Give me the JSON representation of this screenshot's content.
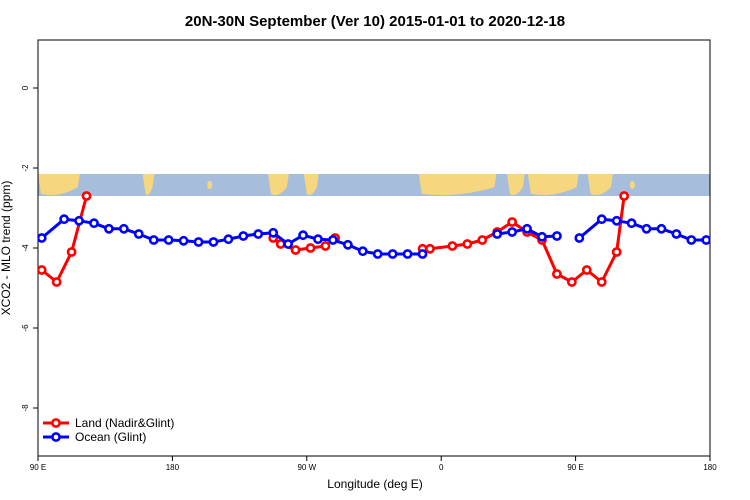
{
  "chart_data": {
    "type": "line",
    "title": "20N-30N September (Ver 10)   2015-01-01 to 2020-12-18",
    "xlabel": "Longitude (deg E)",
    "ylabel": "XCO2 - MLO trend (ppm)",
    "xlim": [
      90,
      540
    ],
    "ylim": [
      -9.2,
      1.2
    ],
    "x_ticks": [
      {
        "value": 90,
        "label": "90 E"
      },
      {
        "value": 180,
        "label": "180"
      },
      {
        "value": 270,
        "label": "90 W"
      },
      {
        "value": 360,
        "label": "0"
      },
      {
        "value": 450,
        "label": "90 E"
      },
      {
        "value": 540,
        "label": "180"
      }
    ],
    "y_ticks": [
      {
        "value": 0,
        "label": "0"
      },
      {
        "value": -2,
        "label": "-2"
      },
      {
        "value": -4,
        "label": "-4"
      },
      {
        "value": -6,
        "label": "-6"
      },
      {
        "value": -8,
        "label": "-8"
      }
    ],
    "map_band": {
      "y_top": -2.15,
      "y_bottom": -2.7,
      "ocean_color": "#a6bddb",
      "land_color": "#f6d77e"
    },
    "legend": {
      "position": "bottom-left"
    },
    "series": [
      {
        "name": "Land (Nadir&Glint)",
        "color": "#ff0000",
        "segments": [
          [
            [
              92.5,
              -4.55
            ],
            [
              102.5,
              -4.85
            ],
            [
              112.5,
              -4.1
            ],
            [
              122.5,
              -2.7
            ]
          ],
          [
            [
              247.5,
              -3.75
            ],
            [
              252.5,
              -3.9
            ],
            [
              262.5,
              -4.05
            ],
            [
              272.5,
              -4.0
            ],
            [
              282.5,
              -3.95
            ],
            [
              289,
              -3.75
            ]
          ],
          [
            [
              347.5,
              -4.02
            ],
            [
              352.5,
              -4.02
            ],
            [
              367.5,
              -3.95
            ],
            [
              377.5,
              -3.9
            ],
            [
              387.5,
              -3.8
            ],
            [
              397.5,
              -3.6
            ],
            [
              407.5,
              -3.35
            ],
            [
              417.5,
              -3.6
            ],
            [
              427.5,
              -3.8
            ],
            [
              437.5,
              -4.65
            ],
            [
              447.5,
              -4.85
            ],
            [
              457.5,
              -4.55
            ],
            [
              467.5,
              -4.85
            ],
            [
              477.5,
              -4.1
            ],
            [
              482.5,
              -2.7
            ]
          ]
        ]
      },
      {
        "name": "Ocean (Glint)",
        "color": "#0000ff",
        "segments": [
          [
            [
              92.5,
              -3.75
            ],
            [
              107.5,
              -3.28
            ],
            [
              117.5,
              -3.32
            ],
            [
              127.5,
              -3.38
            ],
            [
              137.5,
              -3.52
            ],
            [
              147.5,
              -3.52
            ],
            [
              157.5,
              -3.65
            ],
            [
              167.5,
              -3.8
            ],
            [
              177.5,
              -3.8
            ],
            [
              187.5,
              -3.82
            ],
            [
              197.5,
              -3.85
            ],
            [
              207.5,
              -3.85
            ],
            [
              217.5,
              -3.78
            ],
            [
              227.5,
              -3.7
            ],
            [
              237.5,
              -3.65
            ],
            [
              247.5,
              -3.62
            ],
            [
              257.5,
              -3.9
            ],
            [
              267.5,
              -3.68
            ],
            [
              277.5,
              -3.78
            ],
            [
              287.5,
              -3.8
            ],
            [
              297.5,
              -3.92
            ],
            [
              307.5,
              -4.08
            ],
            [
              317.5,
              -4.15
            ],
            [
              327.5,
              -4.15
            ],
            [
              337.5,
              -4.15
            ],
            [
              347.5,
              -4.15
            ]
          ],
          [
            [
              397.5,
              -3.65
            ],
            [
              407.5,
              -3.6
            ],
            [
              417.5,
              -3.52
            ],
            [
              427.5,
              -3.72
            ],
            [
              437.5,
              -3.7
            ]
          ],
          [
            [
              452.5,
              -3.75
            ],
            [
              467.5,
              -3.28
            ],
            [
              477.5,
              -3.32
            ],
            [
              487.5,
              -3.38
            ],
            [
              497.5,
              -3.52
            ],
            [
              507.5,
              -3.52
            ],
            [
              517.5,
              -3.65
            ],
            [
              527.5,
              -3.8
            ],
            [
              537.5,
              -3.8
            ]
          ]
        ]
      }
    ]
  }
}
